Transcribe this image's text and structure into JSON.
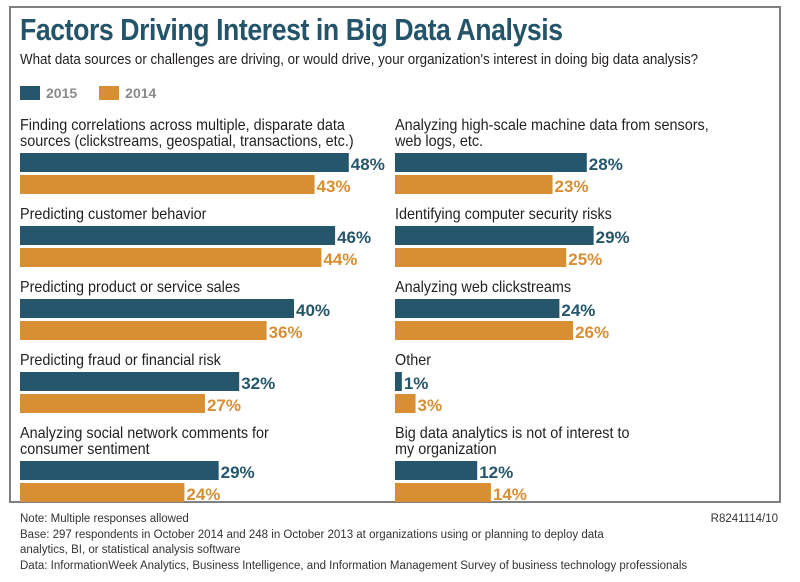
{
  "colors": {
    "2015": "#25566b",
    "2014": "#d88e33",
    "title": "#24546a",
    "frame": "#7f7f7f"
  },
  "header": {
    "title": "Factors Driving Interest in Big Data Analysis",
    "subtitle": "What data sources or challenges are driving, or would drive, your organization's interest in doing big data analysis?"
  },
  "legend": [
    {
      "label": "2015",
      "color": "#25566b"
    },
    {
      "label": "2014",
      "color": "#d88e33"
    }
  ],
  "chart_data": {
    "type": "bar",
    "orientation": "horizontal",
    "title": "Factors Driving Interest in Big Data Analysis",
    "subtitle": "What data sources or challenges are driving, or would drive, your organization's interest in doing big data analysis?",
    "xlabel": "",
    "ylabel": "",
    "unit": "%",
    "xlim": [
      0,
      100
    ],
    "grid": false,
    "legend_position": "top-left",
    "categories": [
      [
        "Finding correlations across multiple, disparate data",
        "sources (clickstreams, geospatial, transactions, etc.)"
      ],
      [
        "Predicting customer behavior"
      ],
      [
        "Predicting product or service sales"
      ],
      [
        "Predicting fraud or financial risk"
      ],
      [
        "Analyzing social network comments for",
        "consumer sentiment"
      ],
      [
        "Analyzing high-scale machine data from sensors,",
        "web logs, etc."
      ],
      [
        "Identifying computer security risks"
      ],
      [
        "Analyzing web clickstreams"
      ],
      [
        "Other"
      ],
      [
        "Big data analytics is not of interest to",
        "my organization"
      ]
    ],
    "series": [
      {
        "name": "2015",
        "color": "#25566b",
        "values": [
          48,
          46,
          40,
          32,
          29,
          28,
          29,
          24,
          1,
          12
        ]
      },
      {
        "name": "2014",
        "color": "#d88e33",
        "values": [
          43,
          44,
          36,
          27,
          24,
          23,
          25,
          26,
          3,
          14
        ]
      }
    ]
  },
  "footer": {
    "note": "Note: Multiple responses allowed",
    "base_line1": "Base: 297 respondents in October 2014 and 248 in October 2013 at organizations using or planning to deploy data",
    "base_line2": "analytics, BI, or statistical analysis software",
    "data_source": "Data: InformationWeek Analytics, Business Intelligence, and Information Management Survey of business technology professionals",
    "report_code": "R8241114/10"
  }
}
